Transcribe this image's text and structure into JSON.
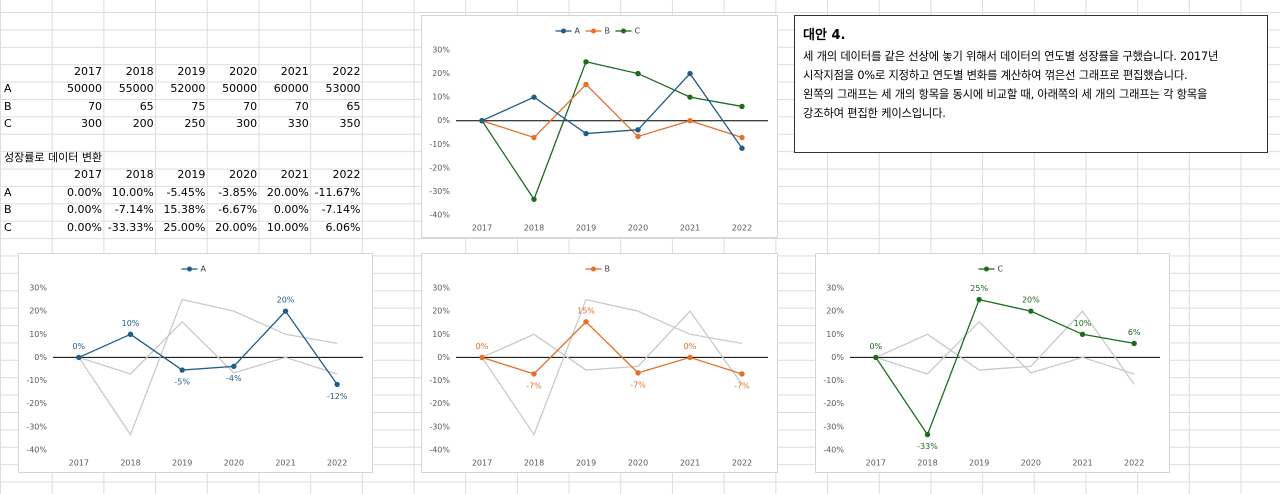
{
  "sheet": {
    "table1": {
      "header": [
        2017,
        2018,
        2019,
        2020,
        2021,
        2022
      ],
      "rows": [
        {
          "label": "A",
          "cells": [
            50000,
            55000,
            52000,
            50000,
            60000,
            53000
          ]
        },
        {
          "label": "B",
          "cells": [
            70,
            65,
            75,
            70,
            70,
            65
          ]
        },
        {
          "label": "C",
          "cells": [
            300,
            200,
            250,
            300,
            330,
            350
          ]
        }
      ]
    },
    "table2": {
      "title": "성장률로 데이터 변환",
      "header": [
        2017,
        2018,
        2019,
        2020,
        2021,
        2022
      ],
      "rows": [
        {
          "label": "A",
          "cells": [
            "0.00%",
            "10.00%",
            "-5.45%",
            "-3.85%",
            "20.00%",
            "-11.67%"
          ]
        },
        {
          "label": "B",
          "cells": [
            "0.00%",
            "-7.14%",
            "15.38%",
            "-6.67%",
            "0.00%",
            "-7.14%"
          ]
        },
        {
          "label": "C",
          "cells": [
            "0.00%",
            "-33.33%",
            "25.00%",
            "20.00%",
            "10.00%",
            "6.06%"
          ]
        }
      ]
    }
  },
  "note": {
    "title": "대안 4.",
    "lines": [
      "세 개의 데이터를 같은 선상에 놓기 위해서 데이터의 연도별 성장률을 구했습니다. 2017년",
      "시작지점을 0%로 지정하고 연도별 변화를 계산하여 꺾은선 그래프로 편집했습니다.",
      "왼쪽의 그래프는 세 개의 항목을 동시에 비교할 때, 아래쪽의 세 개의 그래프는 각 항목을",
      "강조하여 편집한 케이스입니다."
    ]
  },
  "chart_data": [
    {
      "type": "line",
      "categories": [
        "2017",
        "2018",
        "2019",
        "2020",
        "2021",
        "2022"
      ],
      "series": [
        {
          "name": "A",
          "color": "#1f5c87",
          "values": [
            0,
            10,
            -5.45,
            -3.85,
            20,
            -11.67
          ]
        },
        {
          "name": "B",
          "color": "#e4702a",
          "values": [
            0,
            -7.14,
            15.38,
            -6.67,
            0,
            -7.14
          ]
        },
        {
          "name": "C",
          "color": "#1e6b1e",
          "values": [
            0,
            -33.33,
            25,
            20,
            10,
            6.06
          ]
        }
      ],
      "ylim": [
        -40,
        30
      ],
      "yticks": [
        {
          "value": -40,
          "label": "-40%"
        },
        {
          "value": -30,
          "label": "-30%"
        },
        {
          "value": -20,
          "label": "-20%"
        },
        {
          "value": -10,
          "label": "-10%"
        },
        {
          "value": 0,
          "label": "0%"
        },
        {
          "value": 10,
          "label": "10%"
        },
        {
          "value": 20,
          "label": "20%"
        },
        {
          "value": 30,
          "label": "30%"
        }
      ],
      "grid": false,
      "legend": "top"
    },
    {
      "type": "line",
      "categories": [
        "2017",
        "2018",
        "2019",
        "2020",
        "2021",
        "2022"
      ],
      "series": [
        {
          "name": "A",
          "color": "#1f5c87",
          "values": [
            0,
            10,
            -5.45,
            -3.85,
            20,
            -11.67
          ],
          "value_labels": [
            "0%",
            "10%",
            "-5%",
            "-4%",
            "20%",
            "-12%"
          ]
        },
        {
          "color": "#c9c9c9",
          "values": [
            0,
            -7.14,
            15.38,
            -6.67,
            0,
            -7.14
          ],
          "marker": false
        },
        {
          "color": "#c9c9c9",
          "values": [
            0,
            -33.33,
            25,
            20,
            10,
            6.06
          ],
          "marker": false
        }
      ],
      "ylim": [
        -40,
        30
      ],
      "yticks": [
        {
          "value": -40,
          "label": "-40%"
        },
        {
          "value": -30,
          "label": "-30%"
        },
        {
          "value": -20,
          "label": "-20%"
        },
        {
          "value": -10,
          "label": "-10%"
        },
        {
          "value": 0,
          "label": "0%"
        },
        {
          "value": 10,
          "label": "10%"
        },
        {
          "value": 20,
          "label": "20%"
        },
        {
          "value": 30,
          "label": "30%"
        }
      ],
      "grid": false,
      "legend": "top"
    },
    {
      "type": "line",
      "categories": [
        "2017",
        "2018",
        "2019",
        "2020",
        "2021",
        "2022"
      ],
      "series": [
        {
          "name": "B",
          "color": "#e4702a",
          "values": [
            0,
            -7.14,
            15.38,
            -6.67,
            0,
            -7.14
          ],
          "value_labels": [
            "0%",
            "-7%",
            "15%",
            "-7%",
            "0%",
            "-7%"
          ]
        },
        {
          "color": "#c9c9c9",
          "values": [
            0,
            10,
            -5.45,
            -3.85,
            20,
            -11.67
          ],
          "marker": false
        },
        {
          "color": "#c9c9c9",
          "values": [
            0,
            -33.33,
            25,
            20,
            10,
            6.06
          ],
          "marker": false
        }
      ],
      "ylim": [
        -40,
        30
      ],
      "yticks": [
        {
          "value": -40,
          "label": "-40%"
        },
        {
          "value": -30,
          "label": "-30%"
        },
        {
          "value": -20,
          "label": "-20%"
        },
        {
          "value": -10,
          "label": "-10%"
        },
        {
          "value": 0,
          "label": "0%"
        },
        {
          "value": 10,
          "label": "10%"
        },
        {
          "value": 20,
          "label": "20%"
        },
        {
          "value": 30,
          "label": "30%"
        }
      ],
      "grid": false,
      "legend": "top"
    },
    {
      "type": "line",
      "categories": [
        "2017",
        "2018",
        "2019",
        "2020",
        "2021",
        "2022"
      ],
      "series": [
        {
          "name": "C",
          "color": "#1e6b1e",
          "values": [
            0,
            -33.33,
            25,
            20,
            10,
            6.06
          ],
          "value_labels": [
            "0%",
            "-33%",
            "25%",
            "20%",
            "10%",
            "6%"
          ]
        },
        {
          "color": "#c9c9c9",
          "values": [
            0,
            10,
            -5.45,
            -3.85,
            20,
            -11.67
          ],
          "marker": false
        },
        {
          "color": "#c9c9c9",
          "values": [
            0,
            -7.14,
            15.38,
            -6.67,
            0,
            -7.14
          ],
          "marker": false
        }
      ],
      "ylim": [
        -40,
        30
      ],
      "yticks": [
        {
          "value": -40,
          "label": "-40%"
        },
        {
          "value": -30,
          "label": "-30%"
        },
        {
          "value": -20,
          "label": "-20%"
        },
        {
          "value": -10,
          "label": "-10%"
        },
        {
          "value": 0,
          "label": "0%"
        },
        {
          "value": 10,
          "label": "10%"
        },
        {
          "value": 20,
          "label": "20%"
        },
        {
          "value": 30,
          "label": "30%"
        }
      ],
      "grid": false,
      "legend": "top"
    }
  ]
}
